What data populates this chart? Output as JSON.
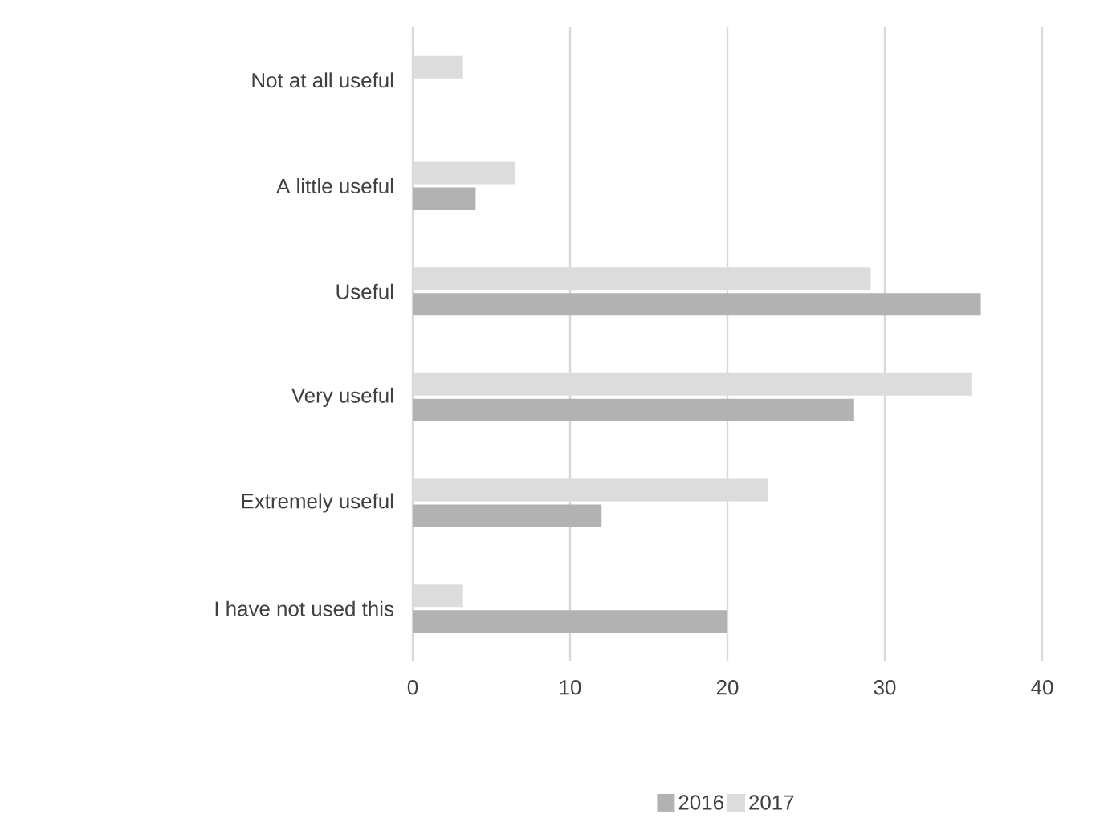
{
  "chart_data": {
    "type": "bar",
    "orientation": "horizontal",
    "categories": [
      "Not at all useful",
      "A little useful",
      "Useful",
      "Very useful",
      "Extremely useful",
      "I have not used this"
    ],
    "series": [
      {
        "name": "2016",
        "color": "#b2b2b2",
        "values": [
          null,
          4.0,
          36.1,
          28.0,
          12.0,
          20.0
        ]
      },
      {
        "name": "2017",
        "color": "#dcdcdc",
        "values": [
          3.2,
          6.5,
          29.1,
          35.5,
          22.6,
          3.2
        ]
      }
    ],
    "xlim": [
      0,
      40
    ],
    "xticks": [
      0,
      10,
      20,
      30,
      40
    ],
    "grid": "x",
    "legend": "bottom"
  }
}
